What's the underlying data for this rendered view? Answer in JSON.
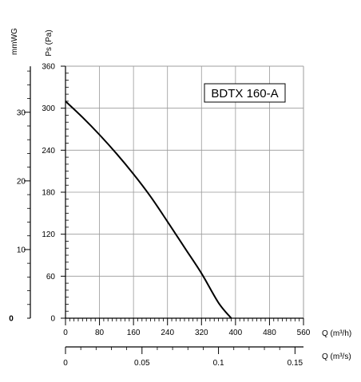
{
  "chart_data": {
    "type": "line",
    "model_label": "BDTX 160-A",
    "ylabel_pa": "Ps (Pa)",
    "ylabel_mmwg": "mmWG",
    "xlabel_m3h": "Q (m³/h)",
    "xlabel_m3s": "Q (m³/s)",
    "xlim": [
      0,
      560
    ],
    "ylim": [
      0,
      360
    ],
    "x_ticks": [
      "0",
      "80",
      "160",
      "240",
      "320",
      "400",
      "480",
      "560"
    ],
    "y_ticks": [
      "0",
      "60",
      "120",
      "180",
      "240",
      "300",
      "360"
    ],
    "mmwg_ticks": [
      "0",
      "10",
      "20",
      "30"
    ],
    "m3s_ticks": [
      "0",
      "0.05",
      "0.1",
      "0.15"
    ],
    "grid": true,
    "series": [
      {
        "name": "",
        "color": "#000000",
        "x": [
          0,
          40,
          80,
          120,
          160,
          200,
          240,
          280,
          320,
          360,
          390
        ],
        "y": [
          310,
          287,
          262,
          235,
          206,
          174,
          138,
          101,
          64,
          22,
          0
        ]
      }
    ]
  }
}
